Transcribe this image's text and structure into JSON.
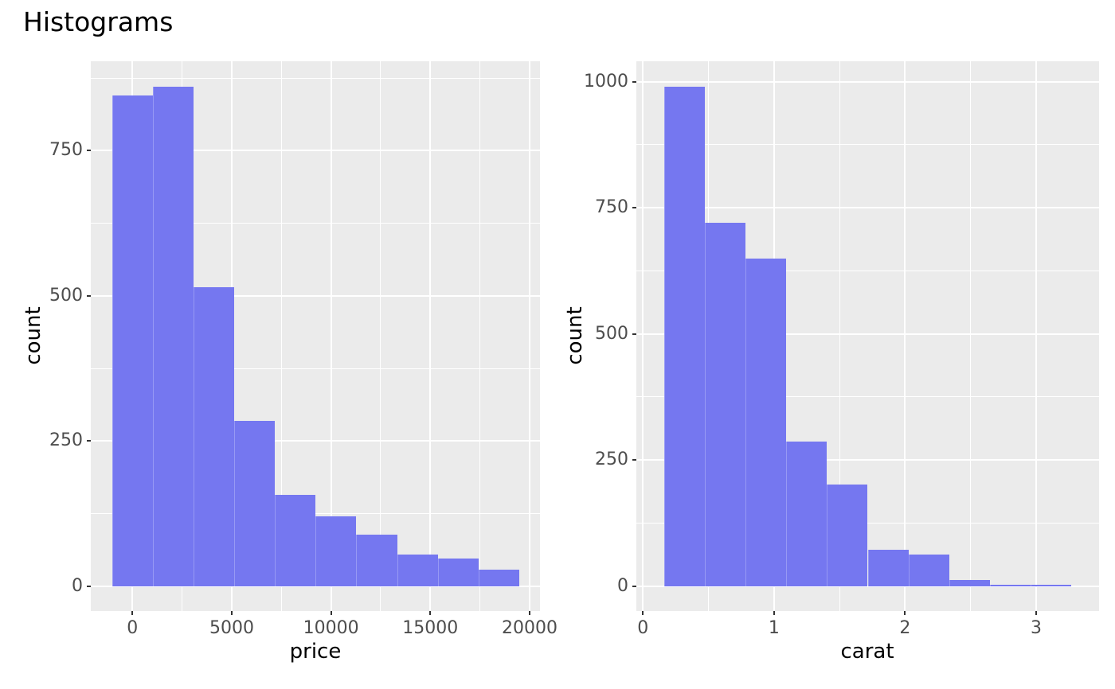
{
  "title": "Histograms",
  "colors": {
    "panel_background": "#EBEBEB",
    "gridline": "#FFFFFF",
    "bar_fill": "#7577F0",
    "tick_text": "#4D4D4D",
    "title_text": "#000000"
  },
  "chart_data": [
    {
      "type": "bar",
      "subtype": "histogram",
      "title": "",
      "xlabel": "price",
      "ylabel": "count",
      "bin_edges": [
        -1025,
        1025,
        3075,
        5125,
        7175,
        9225,
        11275,
        13325,
        15375,
        17425,
        19475
      ],
      "counts": [
        845,
        860,
        515,
        285,
        157,
        120,
        89,
        55,
        47,
        28
      ],
      "x_ticks": {
        "values": [
          0,
          5000,
          10000,
          15000,
          20000
        ],
        "labels": [
          "0",
          "5000",
          "10000",
          "15000",
          "20000"
        ]
      },
      "y_ticks": {
        "values": [
          0,
          250,
          500,
          750
        ],
        "labels": [
          "0",
          "250",
          "500",
          "750"
        ]
      },
      "x_minor": [
        2500,
        7500,
        12500,
        17500
      ],
      "y_minor": [
        125,
        375,
        625,
        875
      ],
      "xlim": [
        -2098,
        20523
      ],
      "ylim": [
        -43,
        904.1
      ],
      "grid": true,
      "legend": "none"
    },
    {
      "type": "bar",
      "subtype": "histogram",
      "title": "",
      "xlabel": "carat",
      "ylabel": "count",
      "bin_edges": [
        0.165,
        0.475,
        0.785,
        1.095,
        1.405,
        1.715,
        2.025,
        2.335,
        2.645,
        2.955,
        3.265
      ],
      "counts": [
        990,
        720,
        650,
        287,
        202,
        72,
        63,
        12,
        3,
        2
      ],
      "x_ticks": {
        "values": [
          0,
          1,
          2,
          3
        ],
        "labels": [
          "0",
          "1",
          "2",
          "3"
        ]
      },
      "y_ticks": {
        "values": [
          0,
          250,
          500,
          750,
          1000
        ],
        "labels": [
          "0",
          "250",
          "500",
          "750",
          "1000"
        ]
      },
      "x_minor": [
        0.5,
        1.5,
        2.5
      ],
      "y_minor": [
        125,
        375,
        625,
        875
      ],
      "xlim": [
        -0.05,
        3.48
      ],
      "ylim": [
        -49.5,
        1040.6
      ],
      "grid": true,
      "legend": "none"
    }
  ]
}
